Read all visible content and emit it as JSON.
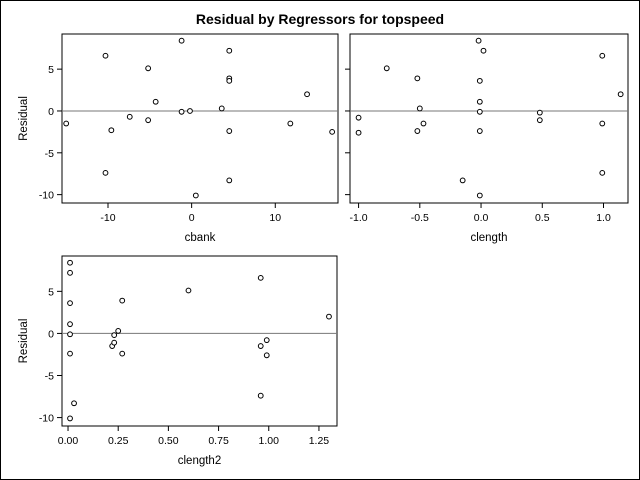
{
  "figure": {
    "title": "Residual by Regressors for topspeed"
  },
  "chart_data": [
    {
      "type": "scatter",
      "xlabel": "cbank",
      "ylabel": "Residual",
      "xlim": [
        -15.5,
        17.5
      ],
      "ylim": [
        -11,
        9.2
      ],
      "xticks": [
        -10,
        0,
        10
      ],
      "xtick_labels": [
        "-10",
        "0",
        "10"
      ],
      "yticks": [
        5,
        0,
        -5,
        -10
      ],
      "ytick_labels": [
        "5",
        "0",
        "-5",
        "-10"
      ],
      "reference_line_y": 0,
      "points": [
        {
          "x": -15,
          "y": -1.5
        },
        {
          "x": -10.3,
          "y": 6.6
        },
        {
          "x": -10.3,
          "y": -7.4
        },
        {
          "x": -9.6,
          "y": -2.3
        },
        {
          "x": -7.4,
          "y": -0.7
        },
        {
          "x": -5.2,
          "y": 5.1
        },
        {
          "x": -5.2,
          "y": -1.1
        },
        {
          "x": -4.3,
          "y": 1.1
        },
        {
          "x": -1.2,
          "y": 8.4
        },
        {
          "x": -1.2,
          "y": -0.1
        },
        {
          "x": -0.2,
          "y": 0.0
        },
        {
          "x": 0.5,
          "y": -10.1
        },
        {
          "x": 3.6,
          "y": 0.3
        },
        {
          "x": 4.5,
          "y": 7.2
        },
        {
          "x": 4.5,
          "y": 3.9
        },
        {
          "x": 4.5,
          "y": 3.6
        },
        {
          "x": 4.5,
          "y": -2.4
        },
        {
          "x": 4.5,
          "y": -8.3
        },
        {
          "x": 11.8,
          "y": -1.5
        },
        {
          "x": 13.8,
          "y": 2.0
        },
        {
          "x": 16.8,
          "y": -2.5
        }
      ]
    },
    {
      "type": "scatter",
      "xlabel": "clength",
      "ylabel": "",
      "xlim": [
        -1.07,
        1.2
      ],
      "ylim": [
        -11,
        9.2
      ],
      "xticks": [
        -1.0,
        -0.5,
        0.0,
        0.5,
        1.0
      ],
      "xtick_labels": [
        "-1.0",
        "-0.5",
        "0.0",
        "0.5",
        "1.0"
      ],
      "yticks": [
        5,
        0,
        -5,
        -10
      ],
      "ytick_labels": [
        "5",
        "0",
        "-5",
        "-10"
      ],
      "reference_line_y": 0,
      "points": [
        {
          "x": -1.0,
          "y": -0.8
        },
        {
          "x": -1.0,
          "y": -2.6
        },
        {
          "x": -0.77,
          "y": 5.1
        },
        {
          "x": -0.52,
          "y": 3.9
        },
        {
          "x": -0.5,
          "y": 0.3
        },
        {
          "x": -0.52,
          "y": -2.4
        },
        {
          "x": -0.47,
          "y": -1.5
        },
        {
          "x": -0.15,
          "y": -8.3
        },
        {
          "x": -0.02,
          "y": 8.4
        },
        {
          "x": -0.01,
          "y": 3.6
        },
        {
          "x": -0.01,
          "y": 1.1
        },
        {
          "x": -0.01,
          "y": -0.1
        },
        {
          "x": -0.01,
          "y": -2.4
        },
        {
          "x": -0.01,
          "y": -10.1
        },
        {
          "x": 0.02,
          "y": 7.2
        },
        {
          "x": 0.48,
          "y": -0.2
        },
        {
          "x": 0.48,
          "y": -1.1
        },
        {
          "x": 0.99,
          "y": 6.6
        },
        {
          "x": 0.99,
          "y": -1.5
        },
        {
          "x": 0.99,
          "y": -7.4
        },
        {
          "x": 1.14,
          "y": 2.0
        }
      ]
    },
    {
      "type": "scatter",
      "xlabel": "clength2",
      "ylabel": "Residual",
      "xlim": [
        -0.03,
        1.34
      ],
      "ylim": [
        -11,
        9.2
      ],
      "xticks": [
        0.0,
        0.25,
        0.5,
        0.75,
        1.0,
        1.25
      ],
      "xtick_labels": [
        "0.00",
        "0.25",
        "0.50",
        "0.75",
        "1.00",
        "1.25"
      ],
      "yticks": [
        5,
        0,
        -5,
        -10
      ],
      "ytick_labels": [
        "5",
        "0",
        "-5",
        "-10"
      ],
      "reference_line_y": 0,
      "points": [
        {
          "x": 0.01,
          "y": 8.4
        },
        {
          "x": 0.01,
          "y": 7.2
        },
        {
          "x": 0.01,
          "y": 3.6
        },
        {
          "x": 0.01,
          "y": 1.1
        },
        {
          "x": 0.01,
          "y": -0.1
        },
        {
          "x": 0.01,
          "y": -2.4
        },
        {
          "x": 0.01,
          "y": -10.1
        },
        {
          "x": 0.03,
          "y": -8.3
        },
        {
          "x": 0.22,
          "y": -1.5
        },
        {
          "x": 0.23,
          "y": -0.2
        },
        {
          "x": 0.23,
          "y": -1.1
        },
        {
          "x": 0.25,
          "y": 0.3
        },
        {
          "x": 0.27,
          "y": 3.9
        },
        {
          "x": 0.27,
          "y": -2.4
        },
        {
          "x": 0.6,
          "y": 5.1
        },
        {
          "x": 0.96,
          "y": 6.6
        },
        {
          "x": 0.96,
          "y": -1.5
        },
        {
          "x": 0.96,
          "y": -7.4
        },
        {
          "x": 0.99,
          "y": -0.8
        },
        {
          "x": 0.99,
          "y": -2.6
        },
        {
          "x": 1.3,
          "y": 2.0
        }
      ]
    }
  ]
}
